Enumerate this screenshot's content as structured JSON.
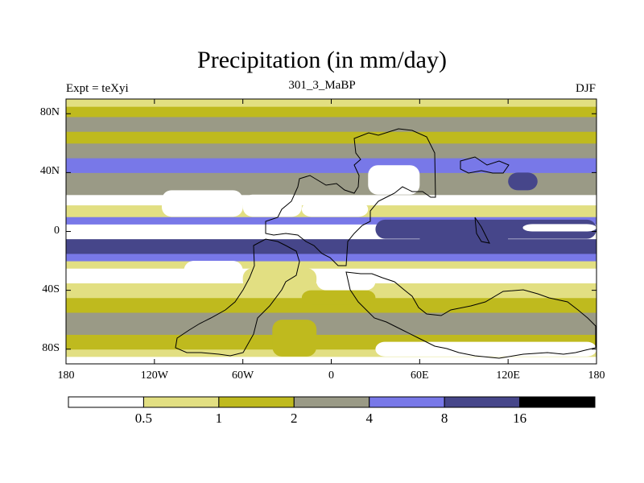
{
  "header": {
    "title": "Precipitation (in mm/day)",
    "left": "Expt = teXyi",
    "center": "301_3_MaBP",
    "right": "DJF"
  },
  "axes": {
    "y_ticks": [
      "80N",
      "40N",
      "0",
      "40S",
      "80S"
    ],
    "x_ticks": [
      "180",
      "120W",
      "60W",
      "0",
      "60E",
      "120E",
      "180"
    ]
  },
  "colorbar": {
    "levels": [
      "0.5",
      "1",
      "2",
      "4",
      "8",
      "16"
    ],
    "colors": [
      "#ffffff",
      "#e2df82",
      "#bfba1e",
      "#9a9a86",
      "#7878e8",
      "#46468a",
      "#000000"
    ]
  },
  "chart_data": {
    "type": "heatmap",
    "title": "Precipitation (in mm/day)",
    "subtitle": "301_3_MaBP",
    "annotations": [
      "Expt = teXyi",
      "DJF"
    ],
    "x_range": [
      -180,
      180
    ],
    "y_range": [
      -90,
      90
    ],
    "contour_levels": [
      0.5,
      1,
      2,
      4,
      8,
      16
    ],
    "zonal_bands": [
      {
        "lat": [
          -90,
          -85
        ],
        "class": 0
      },
      {
        "lat": [
          -85,
          -80
        ],
        "class": 1
      },
      {
        "lat": [
          -80,
          -70
        ],
        "class": 2
      },
      {
        "lat": [
          -70,
          -55
        ],
        "class": 3
      },
      {
        "lat": [
          -55,
          -45
        ],
        "class": 2
      },
      {
        "lat": [
          -45,
          -35
        ],
        "class": 1
      },
      {
        "lat": [
          -35,
          -25
        ],
        "class": 0
      },
      {
        "lat": [
          -25,
          -20
        ],
        "class": 1
      },
      {
        "lat": [
          -20,
          -15
        ],
        "class": 4
      },
      {
        "lat": [
          -15,
          -5
        ],
        "class": 5
      },
      {
        "lat": [
          -5,
          5
        ],
        "class": 0
      },
      {
        "lat": [
          5,
          10
        ],
        "class": 4
      },
      {
        "lat": [
          10,
          18
        ],
        "class": 1
      },
      {
        "lat": [
          18,
          25
        ],
        "class": 0
      },
      {
        "lat": [
          25,
          40
        ],
        "class": 3
      },
      {
        "lat": [
          40,
          50
        ],
        "class": 4
      },
      {
        "lat": [
          50,
          60
        ],
        "class": 3
      },
      {
        "lat": [
          60,
          68
        ],
        "class": 2
      },
      {
        "lat": [
          68,
          78
        ],
        "class": 3
      },
      {
        "lat": [
          78,
          85
        ],
        "class": 2
      },
      {
        "lat": [
          85,
          90
        ],
        "class": 1
      }
    ],
    "regions": [
      {
        "lon": [
          -115,
          -60
        ],
        "lat": [
          10,
          28
        ],
        "class": 0
      },
      {
        "lon": [
          -60,
          -20
        ],
        "lat": [
          10,
          25
        ],
        "class": 0
      },
      {
        "lon": [
          -20,
          25
        ],
        "lat": [
          10,
          20
        ],
        "class": 0
      },
      {
        "lon": [
          -100,
          -60
        ],
        "lat": [
          -35,
          -20
        ],
        "class": 0
      },
      {
        "lon": [
          -60,
          -10
        ],
        "lat": [
          -40,
          -25
        ],
        "class": 1
      },
      {
        "lon": [
          -10,
          30
        ],
        "lat": [
          -40,
          -28
        ],
        "class": 0
      },
      {
        "lon": [
          30,
          180
        ],
        "lat": [
          -5,
          8
        ],
        "class": 5
      },
      {
        "lon": [
          60,
          120
        ],
        "lat": [
          -12,
          0
        ],
        "class": 5
      },
      {
        "lon": [
          130,
          180
        ],
        "lat": [
          0,
          5
        ],
        "class": 0
      },
      {
        "lon": [
          25,
          60
        ],
        "lat": [
          25,
          45
        ],
        "class": 0
      },
      {
        "lon": [
          120,
          140
        ],
        "lat": [
          28,
          40
        ],
        "class": 5
      },
      {
        "lon": [
          -20,
          30
        ],
        "lat": [
          -50,
          -40
        ],
        "class": 2
      },
      {
        "lon": [
          -40,
          -10
        ],
        "lat": [
          -85,
          -60
        ],
        "class": 2
      },
      {
        "lon": [
          30,
          180
        ],
        "lat": [
          -85,
          -75
        ],
        "class": 0
      }
    ]
  }
}
